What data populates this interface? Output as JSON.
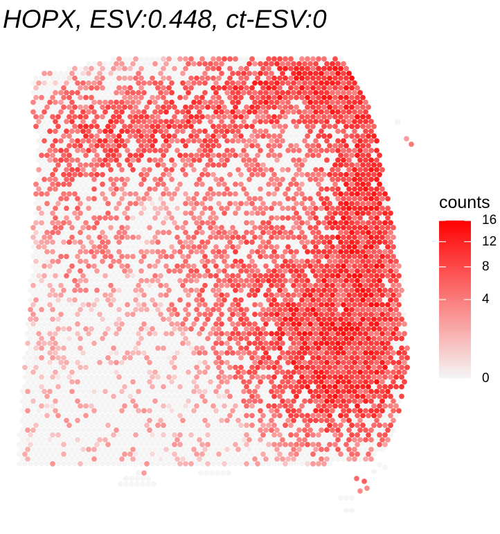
{
  "chart_data": {
    "type": "scatter",
    "subtype": "spatial-transcriptomics-spot-map",
    "title": "HOPX, ESV:0.448, ct-ESV:0",
    "xlabel": "",
    "ylabel": "",
    "grid": false,
    "legend": {
      "title": "counts",
      "placement": "right",
      "scale": "sqrt",
      "range": [
        0,
        16
      ],
      "breaks": [
        0,
        4,
        8,
        12,
        16
      ],
      "break_labels": [
        "0",
        "4",
        "8",
        "12",
        "16"
      ],
      "colors": {
        "low": "#f5f5f5",
        "high": "#ff0000"
      }
    },
    "value_range": [
      0,
      16
    ],
    "description_of_pattern": "high counts concentrated in top-right band and lower-right region; sparse low counts on left"
  }
}
